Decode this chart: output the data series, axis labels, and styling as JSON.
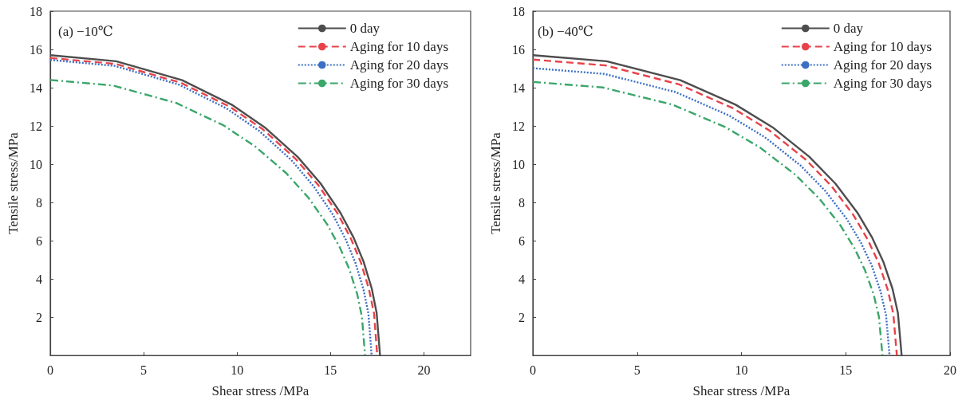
{
  "chart_data": [
    {
      "type": "line",
      "title": "(a) −10℃",
      "xlabel": "Shear stress /MPa",
      "ylabel": "Tensile stress/MPa",
      "xlim": [
        0,
        22.5
      ],
      "xticks": [
        0,
        5,
        10,
        15,
        20
      ],
      "ylim": [
        0,
        18
      ],
      "yticks": [
        2,
        4,
        6,
        8,
        10,
        12,
        14,
        16,
        18
      ],
      "grid": false,
      "legend": "top right",
      "marker": "none",
      "series": [
        {
          "name": "0 day",
          "color": "#4d4d4d",
          "line_style": "solid",
          "x": [
            0,
            3.53,
            7.06,
            9.71,
            11.47,
            13.24,
            14.47,
            15.53,
            16.24,
            16.77,
            17.21,
            17.47,
            17.65
          ],
          "values": [
            15.7,
            15.38,
            14.39,
            13.11,
            11.93,
            10.38,
            8.99,
            7.46,
            6.15,
            4.9,
            3.49,
            2.22,
            0
          ]
        },
        {
          "name": "Aging for 10 days",
          "color": "#e8434a",
          "line_style": "dashed",
          "x": [
            0,
            3.5,
            7.0,
            9.63,
            11.38,
            13.13,
            14.35,
            15.4,
            16.1,
            16.63,
            17.06,
            17.33,
            17.5
          ],
          "values": [
            15.55,
            15.24,
            14.25,
            12.99,
            11.82,
            10.28,
            8.9,
            7.39,
            6.09,
            4.85,
            3.46,
            2.19,
            0
          ]
        },
        {
          "name": "Aging for 20 days",
          "color": "#3b6fc4",
          "line_style": "dotted",
          "x": [
            0,
            3.44,
            6.88,
            9.46,
            11.18,
            12.9,
            14.1,
            15.14,
            15.82,
            16.34,
            16.77,
            17.03,
            17.2
          ],
          "values": [
            15.45,
            15.14,
            14.16,
            12.9,
            11.74,
            10.22,
            8.84,
            7.34,
            6.05,
            4.82,
            3.43,
            2.18,
            0
          ]
        },
        {
          "name": "Aging for 30 days",
          "color": "#3aa66a",
          "line_style": "dashdot",
          "x": [
            0,
            3.37,
            6.74,
            9.27,
            10.95,
            12.64,
            13.82,
            14.83,
            15.5,
            16.01,
            16.43,
            16.68,
            16.85
          ],
          "values": [
            14.4,
            14.11,
            13.2,
            12.03,
            10.94,
            9.52,
            8.24,
            6.84,
            5.64,
            4.5,
            3.2,
            2.03,
            0
          ]
        }
      ]
    },
    {
      "type": "line",
      "title": "(b) −40℃",
      "xlabel": "Shear stress /MPa",
      "ylabel": "Tensile stress/MPa",
      "xlim": [
        0,
        20
      ],
      "xticks": [
        0,
        5,
        10,
        15,
        20
      ],
      "ylim": [
        0,
        18
      ],
      "yticks": [
        2,
        4,
        6,
        8,
        10,
        12,
        14,
        16,
        18
      ],
      "grid": false,
      "legend": "top right",
      "marker": "none",
      "series": [
        {
          "name": "0 day",
          "color": "#4d4d4d",
          "line_style": "solid",
          "x": [
            0,
            3.54,
            7.07,
            9.72,
            11.49,
            13.26,
            14.5,
            15.56,
            16.27,
            16.8,
            17.24,
            17.5,
            17.68
          ],
          "values": [
            15.7,
            15.38,
            14.39,
            13.11,
            11.93,
            10.38,
            8.99,
            7.46,
            6.15,
            4.9,
            3.49,
            2.22,
            0
          ]
        },
        {
          "name": "Aging for 10 days",
          "color": "#e8434a",
          "line_style": "dashed",
          "x": [
            0,
            3.49,
            6.98,
            9.6,
            11.34,
            13.09,
            14.31,
            15.36,
            16.05,
            16.58,
            17.01,
            17.28,
            17.45
          ],
          "values": [
            15.47,
            15.16,
            14.18,
            12.92,
            11.76,
            10.23,
            8.86,
            7.35,
            6.06,
            4.83,
            3.44,
            2.18,
            0
          ]
        },
        {
          "name": "Aging for 20 days",
          "color": "#3b6fc4",
          "line_style": "dotted",
          "x": [
            0,
            3.42,
            6.84,
            9.41,
            11.12,
            12.83,
            14.02,
            15.05,
            15.73,
            16.25,
            16.67,
            16.93,
            17.1
          ],
          "values": [
            15.02,
            14.72,
            13.77,
            12.54,
            11.41,
            9.93,
            8.6,
            7.13,
            5.89,
            4.69,
            3.34,
            2.12,
            0
          ]
        },
        {
          "name": "Aging for 30 days",
          "color": "#3aa66a",
          "line_style": "dashdot",
          "x": [
            0,
            3.35,
            6.7,
            9.22,
            10.89,
            12.57,
            13.74,
            14.75,
            15.42,
            15.92,
            16.34,
            16.59,
            16.76
          ],
          "values": [
            14.3,
            14.01,
            13.11,
            11.94,
            10.87,
            9.46,
            8.19,
            6.79,
            5.6,
            4.46,
            3.18,
            2.02,
            0
          ]
        }
      ]
    }
  ]
}
